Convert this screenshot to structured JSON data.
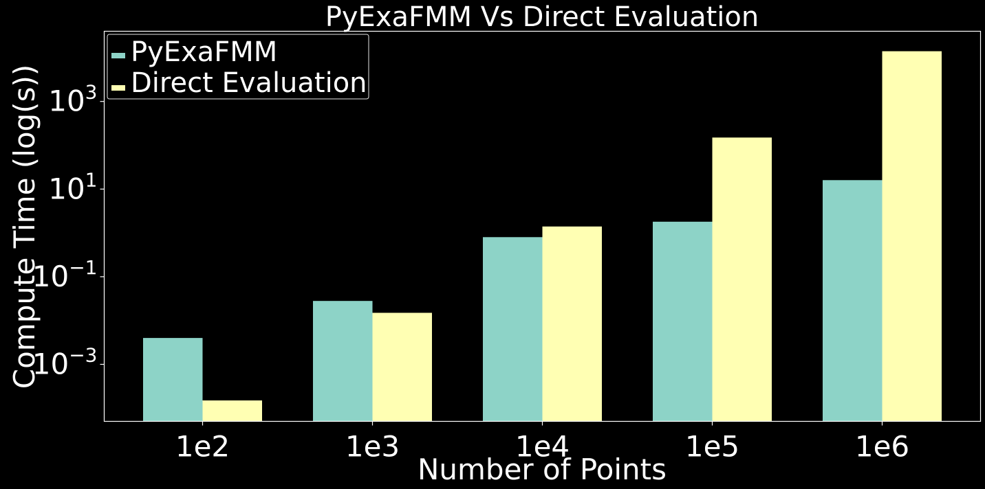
{
  "chart_data": {
    "type": "bar",
    "title": "PyExaFMM Vs Direct Evaluation",
    "xlabel": "Number of Points",
    "ylabel": "Compute Time (log(s))",
    "y_scale": "log",
    "ylim": [
      5e-05,
      40000
    ],
    "categories": [
      "1e2",
      "1e3",
      "1e4",
      "1e5",
      "1e6"
    ],
    "yticks": [
      {
        "value": 0.001,
        "base": "10",
        "exp": "−3"
      },
      {
        "value": 0.1,
        "base": "10",
        "exp": "−1"
      },
      {
        "value": 10,
        "base": "10",
        "exp": "1"
      },
      {
        "value": 1000,
        "base": "10",
        "exp": "3"
      }
    ],
    "series": [
      {
        "name": "PyExaFMM",
        "color": "#8dd3c7",
        "values": [
          0.004,
          0.028,
          0.8,
          1.8,
          16
        ]
      },
      {
        "name": "Direct Evaluation",
        "color": "#ffffb3",
        "values": [
          0.00015,
          0.015,
          1.4,
          150,
          14000
        ]
      }
    ],
    "legend": "top-left",
    "grid": false,
    "background": "#000000",
    "foreground": "#ffffff"
  }
}
